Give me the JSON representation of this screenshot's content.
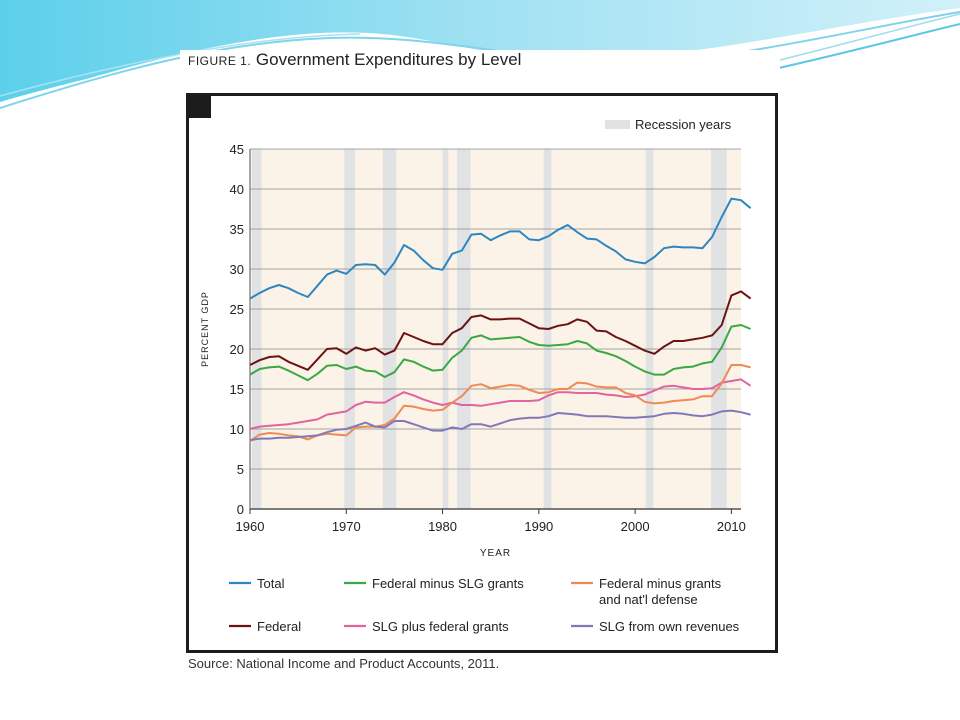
{
  "figure": {
    "label": "FIGURE 1.",
    "title": "Government Expenditures by Level",
    "source": "Source: National Income and Product Accounts, 2011."
  },
  "chart_data": {
    "type": "line",
    "xlabel": "YEAR",
    "ylabel": "PERCENT GDP",
    "xlim": [
      1960,
      2011
    ],
    "ylim": [
      0,
      45
    ],
    "xticks": [
      1960,
      1970,
      1980,
      1990,
      2000,
      2010
    ],
    "yticks": [
      0,
      5,
      10,
      15,
      20,
      25,
      30,
      35,
      40,
      45
    ],
    "grid": true,
    "background_color": "#fbf3e7",
    "recession_color": "#e1e2e4",
    "recession_label": "Recession years",
    "recession_periods": [
      [
        1960.2,
        1961.2
      ],
      [
        1969.8,
        1970.9
      ],
      [
        1973.8,
        1975.2
      ],
      [
        1980.0,
        1980.6
      ],
      [
        1981.5,
        1982.9
      ],
      [
        1990.5,
        1991.3
      ],
      [
        2001.1,
        2001.9
      ],
      [
        2007.9,
        2009.5
      ]
    ],
    "series": [
      {
        "name": "Total",
        "color": "#2e86c1",
        "values": [
          26.3,
          27.0,
          27.6,
          28.0,
          27.6,
          27.0,
          26.5,
          27.9,
          29.3,
          29.8,
          29.4,
          30.5,
          30.6,
          30.5,
          29.3,
          30.8,
          33.0,
          32.3,
          31.1,
          30.1,
          29.9,
          31.9,
          32.3,
          34.3,
          34.4,
          33.6,
          34.2,
          34.7,
          34.7,
          33.7,
          33.6,
          34.1,
          34.9,
          35.5,
          34.6,
          33.8,
          33.7,
          32.9,
          32.2,
          31.2,
          30.9,
          30.7,
          31.5,
          32.6,
          32.8,
          32.7,
          32.7,
          32.6,
          34.0,
          36.5,
          38.8,
          38.6,
          37.6
        ]
      },
      {
        "name": "Federal",
        "color": "#6b1313",
        "values": [
          18.0,
          18.6,
          19.0,
          19.1,
          18.4,
          17.9,
          17.4,
          18.7,
          20.0,
          20.1,
          19.4,
          20.2,
          19.8,
          20.1,
          19.3,
          19.8,
          22.0,
          21.5,
          21.0,
          20.6,
          20.6,
          22.0,
          22.6,
          24.0,
          24.2,
          23.7,
          23.7,
          23.8,
          23.8,
          23.2,
          22.6,
          22.5,
          22.9,
          23.1,
          23.7,
          23.4,
          22.3,
          22.2,
          21.5,
          21.0,
          20.4,
          19.8,
          19.4,
          20.3,
          21.0,
          21.0,
          21.2,
          21.4,
          21.7,
          23.0,
          26.7,
          27.2,
          26.3
        ]
      },
      {
        "name": "Federal minus SLG grants",
        "color": "#3aa844",
        "values": [
          16.8,
          17.5,
          17.7,
          17.8,
          17.3,
          16.7,
          16.1,
          16.9,
          17.9,
          18.0,
          17.5,
          17.8,
          17.3,
          17.2,
          16.5,
          17.1,
          18.7,
          18.4,
          17.8,
          17.3,
          17.4,
          18.9,
          19.8,
          21.4,
          21.7,
          21.2,
          21.3,
          21.4,
          21.5,
          20.9,
          20.5,
          20.4,
          20.5,
          20.6,
          21.0,
          20.7,
          19.8,
          19.5,
          19.1,
          18.5,
          17.8,
          17.2,
          16.8,
          16.8,
          17.5,
          17.7,
          17.8,
          18.2,
          18.4,
          20.2,
          22.8,
          23.0,
          22.5
        ]
      },
      {
        "name": "SLG plus federal grants",
        "color": "#e0649f",
        "values": [
          10.0,
          10.3,
          10.4,
          10.5,
          10.6,
          10.8,
          11.0,
          11.2,
          11.8,
          12.0,
          12.2,
          13.0,
          13.4,
          13.3,
          13.3,
          14.0,
          14.6,
          14.2,
          13.7,
          13.3,
          13.0,
          13.3,
          13.0,
          13.0,
          12.9,
          13.1,
          13.3,
          13.5,
          13.5,
          13.5,
          13.6,
          14.2,
          14.6,
          14.6,
          14.5,
          14.5,
          14.5,
          14.3,
          14.2,
          14.0,
          14.1,
          14.3,
          14.8,
          15.3,
          15.4,
          15.2,
          15.0,
          15.0,
          15.1,
          15.8,
          16.0,
          16.2,
          15.4
        ]
      },
      {
        "name": "Federal minus grants and nat'l defense",
        "color": "#f08a55",
        "values": [
          8.5,
          9.3,
          9.5,
          9.4,
          9.2,
          9.1,
          8.7,
          9.2,
          9.4,
          9.3,
          9.2,
          10.2,
          10.3,
          10.3,
          10.5,
          11.3,
          12.9,
          12.8,
          12.5,
          12.3,
          12.4,
          13.3,
          14.1,
          15.4,
          15.6,
          15.1,
          15.3,
          15.5,
          15.4,
          14.9,
          14.5,
          14.6,
          15.0,
          15.0,
          15.8,
          15.7,
          15.3,
          15.2,
          15.2,
          14.5,
          14.2,
          13.4,
          13.2,
          13.3,
          13.5,
          13.6,
          13.7,
          14.1,
          14.1,
          15.7,
          18.0,
          18.0,
          17.7
        ]
      },
      {
        "name": "SLG from own revenues",
        "color": "#8079b8",
        "values": [
          8.6,
          8.8,
          8.8,
          8.9,
          8.9,
          9.0,
          9.1,
          9.2,
          9.6,
          9.9,
          10.0,
          10.4,
          10.8,
          10.3,
          10.2,
          11.0,
          11.0,
          10.6,
          10.2,
          9.8,
          9.8,
          10.2,
          10.0,
          10.6,
          10.6,
          10.3,
          10.7,
          11.1,
          11.3,
          11.4,
          11.4,
          11.6,
          12.0,
          11.9,
          11.8,
          11.6,
          11.6,
          11.6,
          11.5,
          11.4,
          11.4,
          11.5,
          11.6,
          11.9,
          12.0,
          11.9,
          11.7,
          11.6,
          11.8,
          12.2,
          12.3,
          12.1,
          11.8
        ]
      }
    ],
    "legend_position": "bottom"
  },
  "legend_lines": {
    "Federal minus grants and nat'l defense": [
      "Federal minus grants",
      "and nat'l defense"
    ]
  }
}
